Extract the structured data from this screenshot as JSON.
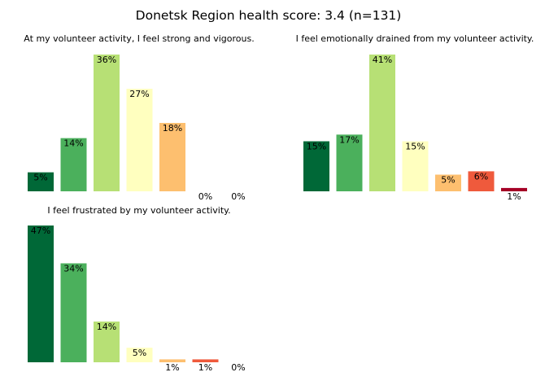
{
  "figure": {
    "title": "Donetsk Region health score: 3.4 (n=131)"
  },
  "colors": [
    "#006837",
    "#4bb05c",
    "#b7e075",
    "#ffffbf",
    "#fdbf6f",
    "#ef5a3c",
    "#a50026"
  ],
  "chart_data": [
    {
      "type": "bar",
      "title": "At my volunteer activity, I feel strong and vigorous.",
      "categories": [
        "1",
        "2",
        "3",
        "4",
        "5",
        "6",
        "7"
      ],
      "values": [
        5,
        14,
        36,
        27,
        18,
        0,
        0
      ],
      "labels": [
        "5%",
        "14%",
        "36%",
        "27%",
        "18%",
        "0%",
        "0%"
      ],
      "ylim": [
        0,
        36
      ],
      "grid": false,
      "axes": false
    },
    {
      "type": "bar",
      "title": "I feel emotionally drained from my volunteer activity.",
      "categories": [
        "1",
        "2",
        "3",
        "4",
        "5",
        "6",
        "7"
      ],
      "values": [
        15,
        17,
        41,
        15,
        5,
        6,
        1
      ],
      "labels": [
        "15%",
        "17%",
        "41%",
        "15%",
        "5%",
        "6%",
        "1%"
      ],
      "ylim": [
        0,
        41
      ],
      "grid": false,
      "axes": false
    },
    {
      "type": "bar",
      "title": "I feel frustrated by my volunteer activity.",
      "categories": [
        "1",
        "2",
        "3",
        "4",
        "5",
        "6",
        "7"
      ],
      "values": [
        47,
        34,
        14,
        5,
        1,
        1,
        0
      ],
      "labels": [
        "47%",
        "34%",
        "14%",
        "5%",
        "1%",
        "1%",
        "0%"
      ],
      "ylim": [
        0,
        47
      ],
      "grid": false,
      "axes": false
    }
  ]
}
